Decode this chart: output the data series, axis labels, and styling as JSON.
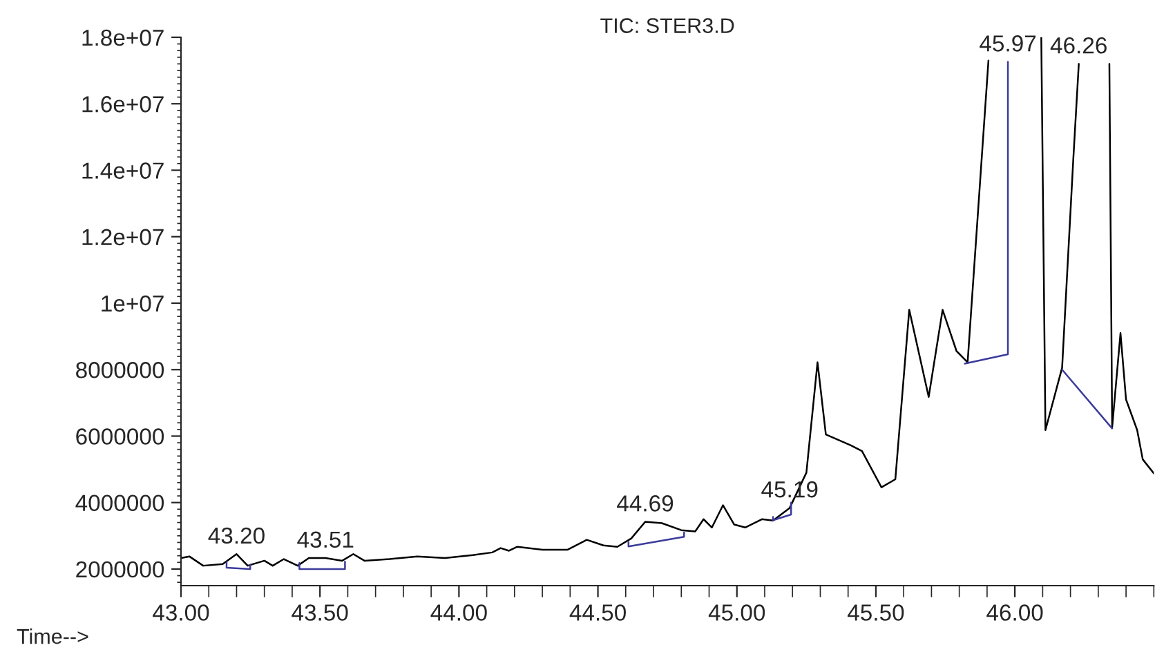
{
  "chart_data": {
    "type": "line",
    "title": "TIC: STER3.D",
    "xlabel": "Time-->",
    "xlim": [
      43.0,
      46.5
    ],
    "ylim": [
      1500000,
      18000000
    ],
    "xticks": [
      {
        "value": 43.0,
        "label": "43.00"
      },
      {
        "value": 43.5,
        "label": "43.50"
      },
      {
        "value": 44.0,
        "label": "44.00"
      },
      {
        "value": 44.5,
        "label": "44.50"
      },
      {
        "value": 45.0,
        "label": "45.00"
      },
      {
        "value": 45.5,
        "label": "45.50"
      },
      {
        "value": 46.0,
        "label": "46.00"
      }
    ],
    "yticks": [
      2000000,
      4000000,
      6000000,
      8000000,
      {
        "value": 10000000,
        "label": "1e+07"
      },
      {
        "value": 12000000,
        "label": "1.2e+07"
      },
      {
        "value": 14000000,
        "label": "1.4e+07"
      },
      {
        "value": 16000000,
        "label": "1.6e+07"
      },
      {
        "value": 18000000,
        "label": "1.8e+07"
      }
    ],
    "grid": false,
    "marker": "none",
    "line_style": "solid",
    "series": [
      {
        "color": "#000000",
        "x": [
          43.0,
          43.03,
          43.08,
          43.15,
          43.2,
          43.24,
          43.3,
          43.33,
          43.37,
          43.42,
          43.46,
          43.52,
          43.58,
          43.62,
          43.66,
          43.75,
          43.85,
          43.95,
          44.05,
          44.12,
          44.15,
          44.18,
          44.21,
          44.3,
          44.39,
          44.46,
          44.52,
          44.57,
          44.62,
          44.67,
          44.73,
          44.8,
          44.85,
          44.88,
          44.91,
          44.95,
          44.99,
          45.03,
          45.09,
          45.13,
          45.19,
          45.25,
          45.29,
          45.32,
          45.41,
          45.45,
          45.52,
          45.57,
          45.62,
          45.69,
          45.74,
          45.79,
          45.83,
          45.905,
          46.0,
          46.095,
          46.11,
          46.17,
          46.21,
          46.23,
          46.28,
          46.34,
          46.35,
          46.38,
          46.4,
          46.44,
          46.46,
          46.5
        ],
        "values": [
          2330000,
          2380000,
          2100000,
          2150000,
          2450000,
          2100000,
          2250000,
          2100000,
          2300000,
          2100000,
          2330000,
          2330000,
          2250000,
          2450000,
          2250000,
          2300000,
          2380000,
          2330000,
          2420000,
          2500000,
          2630000,
          2550000,
          2670000,
          2580000,
          2580000,
          2880000,
          2710000,
          2670000,
          2920000,
          3420000,
          3380000,
          3170000,
          3130000,
          3500000,
          3250000,
          3920000,
          3340000,
          3250000,
          3500000,
          3460000,
          3840000,
          4900000,
          8220000,
          6050000,
          5720000,
          5550000,
          4460000,
          4700000,
          9800000,
          7180000,
          9800000,
          8560000,
          8220000,
          17300000,
          null,
          18000000,
          6180000,
          8060000,
          14300000,
          17200000,
          null,
          17200000,
          6260000,
          9100000,
          7100000,
          6180000,
          5300000,
          4880000
        ]
      },
      {
        "color": "#3b3b9b",
        "x": [
          43.164,
          43.164,
          43.249,
          43.249
        ],
        "values": [
          2200000,
          2040000,
          2000000,
          2130000
        ]
      },
      {
        "color": "#3b3b9b",
        "x": [
          43.426,
          43.426,
          43.59,
          43.59
        ],
        "values": [
          2180000,
          2000000,
          2000000,
          2220000
        ]
      },
      {
        "color": "#3b3b9b",
        "x": [
          44.61,
          44.61,
          44.81,
          44.81
        ],
        "values": [
          2810000,
          2680000,
          2970000,
          3100000
        ]
      },
      {
        "color": "#3b3b9b",
        "x": [
          45.13,
          45.13,
          45.195,
          45.195
        ],
        "values": [
          3570000,
          3470000,
          3640000,
          4000000
        ]
      },
      {
        "color": "#3b3b9b",
        "x": [
          45.82,
          45.975,
          45.975
        ],
        "values": [
          8180000,
          8460000,
          17260000
        ]
      },
      {
        "color": "#3b3b9b",
        "x": [
          46.17,
          46.35
        ],
        "values": [
          8000000,
          6230000
        ]
      }
    ],
    "annotations": [
      {
        "text": "43.20",
        "x": 43.2,
        "y": 2450000
      },
      {
        "text": "43.51",
        "x": 43.52,
        "y": 2330000
      },
      {
        "text": "44.69",
        "x": 44.67,
        "y": 3420000
      },
      {
        "text": "45.19",
        "x": 45.19,
        "y": 3840000
      },
      {
        "text": "45.97",
        "x": 45.975,
        "y": 17260000
      },
      {
        "text": "46.26",
        "x": 46.23,
        "y": 17200000
      }
    ]
  }
}
